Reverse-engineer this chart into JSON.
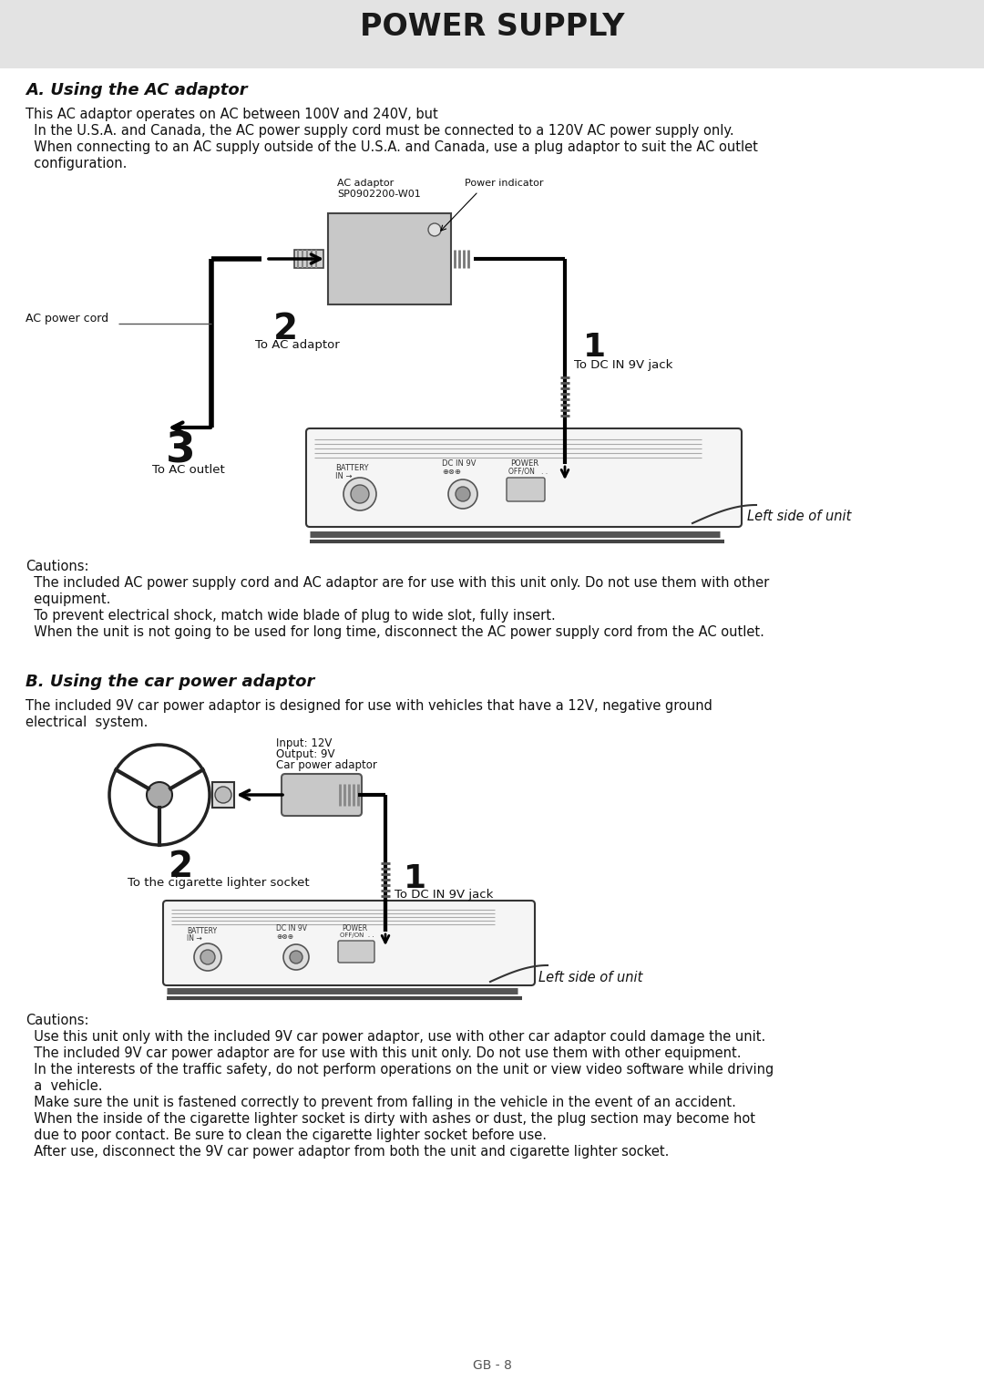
{
  "page_title": "POWER SUPPLY",
  "bg_header": "#e3e3e3",
  "bg_body": "#ffffff",
  "text_color": "#111111",
  "section_a_title": "A. Using the AC adaptor",
  "section_a_line1": "This AC adaptor operates on AC between 100V and 240V, but",
  "section_a_line2": "  In the U.S.A. and Canada, the AC power supply cord must be connected to a 120V AC power supply only.",
  "section_a_line3": "  When connecting to an AC supply outside of the U.S.A. and Canada, use a plug adaptor to suit the AC outlet",
  "section_a_line4": "  configuration.",
  "section_a_cautions_title": "Cautions:",
  "section_a_caut1": "  The included AC power supply cord and AC adaptor are for use with this unit only. Do not use them with other",
  "section_a_caut2": "  equipment.",
  "section_a_caut3": "  To prevent electrical shock, match wide blade of plug to wide slot, fully insert.",
  "section_a_caut4": "  When the unit is not going to be used for long time, disconnect the AC power supply cord from the AC outlet.",
  "section_b_title": "B. Using the car power adaptor",
  "section_b_line1": "The included 9V car power adaptor is designed for use with vehicles that have a 12V, negative ground",
  "section_b_line2": "electrical  system.",
  "section_b_cautions_title": "Cautions:",
  "section_b_caut1": "  Use this unit only with the included 9V car power adaptor, use with other car adaptor could damage the unit.",
  "section_b_caut2": "  The included 9V car power adaptor are for use with this unit only. Do not use them with other equipment.",
  "section_b_caut3": "  In the interests of the traffic safety, do not perform operations on the unit or view video software while driving",
  "section_b_caut4": "  a  vehicle.",
  "section_b_caut5": "  Make sure the unit is fastened correctly to prevent from falling in the vehicle in the event of an accident.",
  "section_b_caut6": "  When the inside of the cigarette lighter socket is dirty with ashes or dust, the plug section may become hot",
  "section_b_caut7": "  due to poor contact. Be sure to clean the cigarette lighter socket before use.",
  "section_b_caut8": "  After use, disconnect the 9V car power adaptor from both the unit and cigarette lighter socket.",
  "footer": "GB - 8"
}
